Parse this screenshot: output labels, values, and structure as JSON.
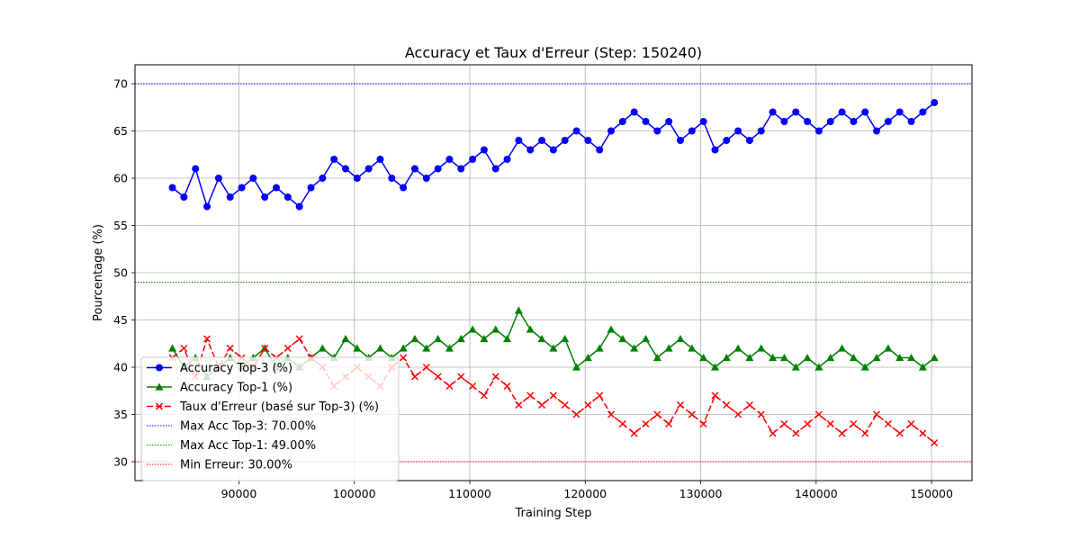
{
  "chart_data": {
    "type": "line",
    "title": "Accuracy et Taux d'Erreur (Step: 150240)",
    "xlabel": "Training Step",
    "ylabel": "Pourcentage (%)",
    "xlim": [
      81000,
      153500
    ],
    "ylim": [
      28,
      72
    ],
    "xticks": [
      90000,
      100000,
      110000,
      120000,
      130000,
      140000,
      150000
    ],
    "yticks": [
      30,
      35,
      40,
      45,
      50,
      55,
      60,
      65,
      70
    ],
    "grid": true,
    "legend_position": "lower-left",
    "series": [
      {
        "name": "Accuracy Top-3 (%)",
        "color": "#0000ff",
        "line_style": "solid",
        "marker": "circle",
        "x": [
          84240,
          85240,
          86240,
          87240,
          88240,
          89240,
          90240,
          91240,
          92240,
          93240,
          94240,
          95240,
          96240,
          97240,
          98240,
          99240,
          100240,
          101240,
          102240,
          103240,
          104240,
          105240,
          106240,
          107240,
          108240,
          109240,
          110240,
          111240,
          112240,
          113240,
          114240,
          115240,
          116240,
          117240,
          118240,
          119240,
          120240,
          121240,
          122240,
          123240,
          124240,
          125240,
          126240,
          127240,
          128240,
          129240,
          130240,
          131240,
          132240,
          133240,
          134240,
          135240,
          136240,
          137240,
          138240,
          139240,
          140240,
          141240,
          142240,
          143240,
          144240,
          145240,
          146240,
          147240,
          148240,
          149240,
          150240
        ],
        "values": [
          59,
          58,
          61,
          57,
          60,
          58,
          59,
          60,
          58,
          59,
          58,
          57,
          59,
          60,
          62,
          61,
          60,
          61,
          62,
          60,
          59,
          61,
          60,
          61,
          62,
          61,
          62,
          63,
          61,
          62,
          64,
          63,
          64,
          63,
          64,
          65,
          64,
          63,
          65,
          66,
          67,
          66,
          65,
          66,
          64,
          65,
          66,
          63,
          64,
          65,
          64,
          65,
          67,
          66,
          67,
          66,
          65,
          66,
          67,
          66,
          67,
          65,
          66,
          67,
          66,
          67,
          68
        ]
      },
      {
        "name": "Accuracy Top-1 (%)",
        "color": "#008000",
        "line_style": "solid",
        "marker": "triangle",
        "x": [
          84240,
          85240,
          86240,
          87240,
          88240,
          89240,
          90240,
          91240,
          92240,
          93240,
          94240,
          95240,
          96240,
          97240,
          98240,
          99240,
          100240,
          101240,
          102240,
          103240,
          104240,
          105240,
          106240,
          107240,
          108240,
          109240,
          110240,
          111240,
          112240,
          113240,
          114240,
          115240,
          116240,
          117240,
          118240,
          119240,
          120240,
          121240,
          122240,
          123240,
          124240,
          125240,
          126240,
          127240,
          128240,
          129240,
          130240,
          131240,
          132240,
          133240,
          134240,
          135240,
          136240,
          137240,
          138240,
          139240,
          140240,
          141240,
          142240,
          143240,
          144240,
          145240,
          146240,
          147240,
          148240,
          149240,
          150240
        ],
        "values": [
          42,
          40,
          41,
          39,
          40,
          41,
          40,
          41,
          42,
          40,
          41,
          40,
          41,
          42,
          41,
          43,
          42,
          41,
          42,
          41,
          42,
          43,
          42,
          43,
          42,
          43,
          44,
          43,
          44,
          43,
          46,
          44,
          43,
          42,
          43,
          40,
          41,
          42,
          44,
          43,
          42,
          43,
          41,
          42,
          43,
          42,
          41,
          40,
          41,
          42,
          41,
          42,
          41,
          41,
          40,
          41,
          40,
          41,
          42,
          41,
          40,
          41,
          42,
          41,
          41,
          40,
          41
        ]
      },
      {
        "name": "Taux d'Erreur (basé sur Top-3) (%)",
        "color": "#ff0000",
        "line_style": "dashed",
        "marker": "x",
        "x": [
          84240,
          85240,
          86240,
          87240,
          88240,
          89240,
          90240,
          91240,
          92240,
          93240,
          94240,
          95240,
          96240,
          97240,
          98240,
          99240,
          100240,
          101240,
          102240,
          103240,
          104240,
          105240,
          106240,
          107240,
          108240,
          109240,
          110240,
          111240,
          112240,
          113240,
          114240,
          115240,
          116240,
          117240,
          118240,
          119240,
          120240,
          121240,
          122240,
          123240,
          124240,
          125240,
          126240,
          127240,
          128240,
          129240,
          130240,
          131240,
          132240,
          133240,
          134240,
          135240,
          136240,
          137240,
          138240,
          139240,
          140240,
          141240,
          142240,
          143240,
          144240,
          145240,
          146240,
          147240,
          148240,
          149240,
          150240
        ],
        "values": [
          41,
          42,
          39,
          43,
          40,
          42,
          41,
          40,
          42,
          41,
          42,
          43,
          41,
          40,
          38,
          39,
          40,
          39,
          38,
          40,
          41,
          39,
          40,
          39,
          38,
          39,
          38,
          37,
          39,
          38,
          36,
          37,
          36,
          37,
          36,
          35,
          36,
          37,
          35,
          34,
          33,
          34,
          35,
          34,
          36,
          35,
          34,
          37,
          36,
          35,
          36,
          35,
          33,
          34,
          33,
          34,
          35,
          34,
          33,
          34,
          33,
          35,
          34,
          33,
          34,
          33,
          32
        ]
      }
    ],
    "reference_lines": [
      {
        "name": "Max Acc Top-3: 70.00%",
        "y": 70,
        "color": "#0000ff",
        "line_style": "dotted"
      },
      {
        "name": "Max Acc Top-1: 49.00%",
        "y": 49,
        "color": "#008000",
        "line_style": "dotted"
      },
      {
        "name": "Min Erreur: 30.00%",
        "y": 30,
        "color": "#ff0000",
        "line_style": "dotted"
      }
    ]
  }
}
